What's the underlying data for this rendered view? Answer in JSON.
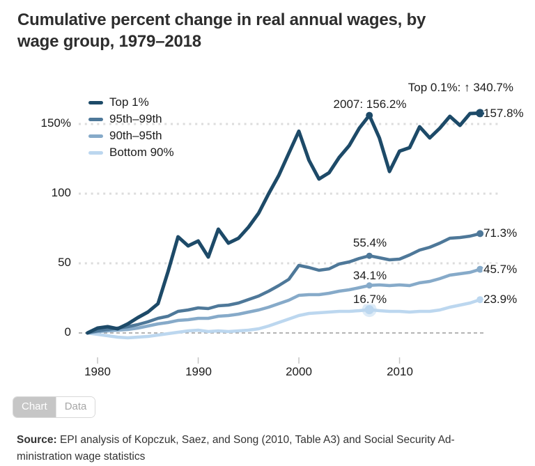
{
  "title": {
    "line1": "Cumulative percent change in real annual wages, by",
    "line2": "wage group, 1979–2018"
  },
  "chart_data": {
    "type": "line",
    "title": "Cumulative percent change in real annual wages, by wage group, 1979–2018",
    "xlabel": "",
    "ylabel": "",
    "ylim": [
      -5,
      175
    ],
    "grid": "dotted horizontal gridlines at 50, 100, 150; dashed line at 0",
    "legend_position": "top-left inside plot",
    "years": [
      1979,
      1980,
      1981,
      1982,
      1983,
      1984,
      1985,
      1986,
      1987,
      1988,
      1989,
      1990,
      1991,
      1992,
      1993,
      1994,
      1995,
      1996,
      1997,
      1998,
      1999,
      2000,
      2001,
      2002,
      2003,
      2004,
      2005,
      2006,
      2007,
      2008,
      2009,
      2010,
      2011,
      2012,
      2013,
      2014,
      2015,
      2016,
      2017,
      2018
    ],
    "series": [
      {
        "id": "top-1pct",
        "name": "Top 1%",
        "color": "#1d4a68",
        "values": [
          0,
          3.5,
          4.5,
          3,
          6.5,
          11,
          15,
          21,
          44,
          69,
          62.5,
          66,
          54.5,
          74.5,
          64.5,
          68,
          76,
          86,
          100,
          113,
          129,
          144.8,
          124,
          110.5,
          115,
          126,
          134.5,
          147,
          156.2,
          140,
          115.9,
          130.5,
          133,
          148,
          140,
          147,
          155.5,
          149,
          157.5,
          157.8
        ]
      },
      {
        "id": "95th-99th",
        "name": "95th–99th",
        "color": "#4e7899",
        "values": [
          0,
          1.5,
          2.5,
          3.5,
          4.5,
          6,
          8,
          10.5,
          12,
          15.5,
          16.5,
          18,
          17.5,
          19.5,
          20,
          21.5,
          24,
          26.5,
          30,
          34,
          38.5,
          48.5,
          47,
          45,
          46,
          49.5,
          51,
          53.5,
          55.4,
          54,
          52.5,
          53,
          56,
          59.5,
          61.5,
          64.5,
          68,
          68.5,
          69.5,
          71.3
        ]
      },
      {
        "id": "90th-95th",
        "name": "90th–95th",
        "color": "#86aac9",
        "values": [
          0,
          1,
          1.5,
          2,
          2.5,
          3.5,
          5,
          6.5,
          7.5,
          9,
          9.5,
          10.5,
          10.5,
          12,
          12.5,
          13.5,
          15,
          16.5,
          18.5,
          21,
          23.5,
          27,
          27.5,
          27.5,
          28.5,
          30,
          31,
          32.5,
          34.1,
          34.5,
          34,
          34.5,
          34,
          36,
          37,
          39,
          41.5,
          42.5,
          43.5,
          45.7
        ]
      },
      {
        "id": "bottom-90",
        "name": "Bottom 90%",
        "color": "#bcd7ef",
        "values": [
          0,
          -1,
          -2,
          -3,
          -3.5,
          -3,
          -2.5,
          -1.5,
          -0.5,
          0.5,
          1.5,
          2,
          1,
          1.5,
          1,
          1.5,
          2,
          3,
          5,
          7.5,
          10,
          12.5,
          14,
          14.5,
          15,
          15.5,
          15.5,
          16,
          16.7,
          16,
          15.5,
          15.5,
          15,
          15.5,
          15.5,
          16.5,
          18.5,
          20,
          21.5,
          23.9
        ]
      }
    ],
    "yticks": [
      {
        "value": 150,
        "label": "150%"
      },
      {
        "value": 100,
        "label": "100"
      },
      {
        "value": 50,
        "label": "50"
      },
      {
        "value": 0,
        "label": "0"
      }
    ],
    "xticks": [
      {
        "value": 1980,
        "label": "1980"
      },
      {
        "value": 1990,
        "label": "1990"
      },
      {
        "value": 2000,
        "label": "2000"
      },
      {
        "value": 2010,
        "label": "2010"
      }
    ],
    "markers": {
      "peak_year": 2007,
      "end_year": 2018
    },
    "annotations": {
      "top01": "Top 0.1%: ↑ 340.7%",
      "peak2007": "2007: 156.2%",
      "end_top1": "157.8%",
      "end_p95": "71.3%",
      "end_p90": "45.7%",
      "end_b90": "23.9%",
      "mid_p95": "55.4%",
      "mid_p90": "34.1%",
      "mid_b90": "16.7%"
    }
  },
  "tabs": {
    "chart": "Chart",
    "data": "Data"
  },
  "source": {
    "prefix": "Source:",
    "line1": " EPI analysis of Kopczuk, Saez, and Song (2010, Table A3) and Social Security Ad-",
    "line2": "ministration wage statistics"
  }
}
